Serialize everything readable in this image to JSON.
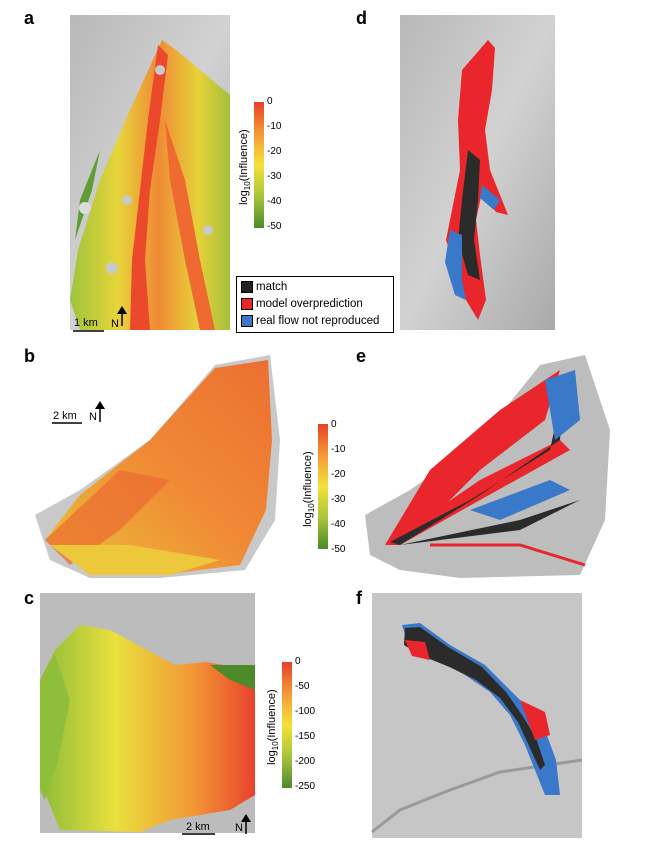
{
  "panels": {
    "a": {
      "label": "a"
    },
    "b": {
      "label": "b"
    },
    "c": {
      "label": "c"
    },
    "d": {
      "label": "d"
    },
    "e": {
      "label": "e"
    },
    "f": {
      "label": "f"
    }
  },
  "colorbars": {
    "a": {
      "title": "log10(Influence)",
      "ticks": [
        "0",
        "-10",
        "-20",
        "-30",
        "-40",
        "-50"
      ]
    },
    "b": {
      "title": "log10(Influence)",
      "ticks": [
        "0",
        "-10",
        "-20",
        "-30",
        "-40",
        "-50"
      ]
    },
    "c": {
      "title": "log10(Influence)",
      "ticks": [
        "0",
        "-50",
        "-100",
        "-150",
        "-200",
        "-250"
      ]
    }
  },
  "colorbar_title_main": "log",
  "colorbar_title_sub": "10",
  "colorbar_title_rest": "(Influence)",
  "legend": {
    "items": [
      {
        "label": "match",
        "color": "#222222"
      },
      {
        "label": "model overprediction",
        "color": "#e8262b"
      },
      {
        "label": "real flow not reproduced",
        "color": "#3a78c9"
      }
    ]
  },
  "scalebars": {
    "a": {
      "distance": "1 km",
      "north": "N"
    },
    "b": {
      "distance": "2 km",
      "north": "N"
    },
    "c": {
      "distance": "2 km",
      "north": "N"
    }
  },
  "colors": {
    "match": "#222222",
    "overprediction": "#e8262b",
    "not_reproduced": "#3a78c9",
    "influence_high": "#e8402a",
    "influence_mid": "#f5e13a",
    "influence_low": "#4d8a2a"
  }
}
